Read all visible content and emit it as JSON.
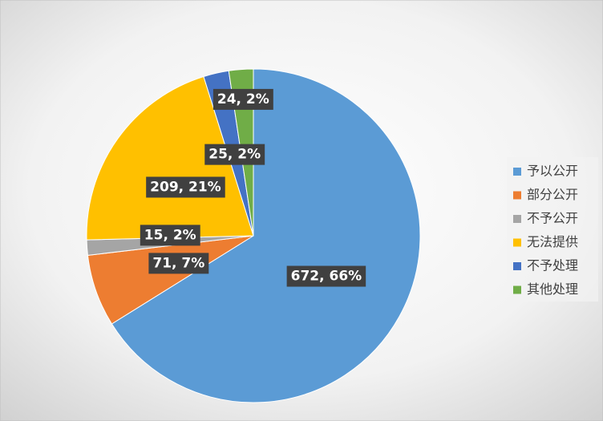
{
  "chart_data": {
    "type": "pie",
    "categories": [
      "予以公开",
      "部分公开",
      "不予公开",
      "无法提供",
      "不予处理",
      "其他处理"
    ],
    "values": [
      672,
      71,
      15,
      209,
      25,
      24
    ],
    "value_labels": [
      "672, 66%",
      "71, 7%",
      "15, 2%",
      "209, 21%",
      "25, 2%",
      "24, 2%"
    ],
    "colors": [
      "#5b9bd5",
      "#ed7d31",
      "#a5a5a5",
      "#ffc000",
      "#4472c4",
      "#70ad47"
    ],
    "legend": "right"
  }
}
